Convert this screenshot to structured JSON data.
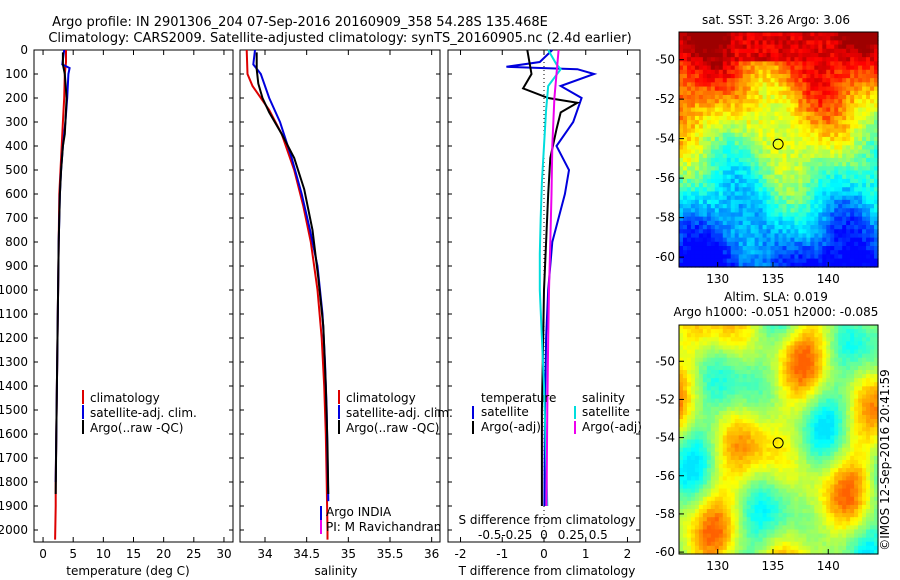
{
  "title": {
    "line1": "Argo profile: IN 2901306_204 07-Sep-2016 20160909_358 54.28S 135.468E",
    "line2": "Climatology: CARS2009. Satellite-adjusted climatology: synTS_20160905.nc (2.4d earlier)"
  },
  "colors": {
    "climatology": "#dd0000",
    "satellite": "#0000dd",
    "argo": "#000000",
    "sat_salinity": "#00dddd",
    "argo_salinity": "#ee00ee"
  },
  "chart_data": [
    {
      "type": "line",
      "xlabel": "temperature (deg C)",
      "ylim": [
        2050,
        0
      ],
      "xlim": [
        -1.5,
        31.5
      ],
      "x_ticks": [
        0,
        5,
        10,
        15,
        20,
        25,
        30
      ],
      "y_ticks": [
        0,
        100,
        200,
        300,
        400,
        500,
        600,
        700,
        800,
        900,
        1000,
        1100,
        1200,
        1300,
        1400,
        1500,
        1600,
        1700,
        1800,
        1900,
        2000
      ],
      "legend": [
        "climatology",
        "satellite-adj. clim.",
        "Argo(..raw -QC)"
      ],
      "series": [
        {
          "name": "climatology",
          "color": "#dd0000",
          "x": [
            3.8,
            3.8,
            3.6,
            3.5,
            3.3,
            3.1,
            2.9,
            2.7,
            2.6,
            2.5,
            2.4,
            2.3,
            2.2,
            2.1,
            2.1,
            2.0
          ],
          "y": [
            0,
            50,
            100,
            200,
            300,
            400,
            500,
            600,
            800,
            1000,
            1200,
            1400,
            1600,
            1800,
            1900,
            2040
          ]
        },
        {
          "name": "satellite-adj. clim.",
          "color": "#0000dd",
          "x": [
            3.5,
            3.2,
            4.4,
            4.2,
            4.0,
            3.7,
            3.3,
            3.0,
            2.8,
            2.6,
            2.5,
            2.4,
            2.3,
            2.2,
            2.1
          ],
          "y": [
            0,
            60,
            75,
            100,
            200,
            300,
            400,
            500,
            600,
            800,
            1000,
            1200,
            1400,
            1600,
            1800
          ]
        },
        {
          "name": "Argo(..raw -QC)",
          "color": "#000000",
          "x": [
            3.3,
            3.3,
            3.6,
            3.9,
            3.7,
            3.6,
            3.3,
            3.0,
            2.8,
            2.6,
            2.5,
            2.4,
            2.3,
            2.2,
            2.1
          ],
          "y": [
            10,
            60,
            100,
            200,
            300,
            350,
            400,
            500,
            600,
            800,
            1000,
            1200,
            1400,
            1600,
            1850
          ]
        }
      ]
    },
    {
      "type": "line",
      "xlabel": "salinity",
      "ylim": [
        2050,
        0
      ],
      "xlim": [
        33.7,
        36.1
      ],
      "x_ticks": [
        34,
        34.5,
        35,
        35.5,
        36
      ],
      "legend": [
        "climatology",
        "satellite-adj. clim.",
        "Argo(..raw -QC)"
      ],
      "annotation": [
        "Argo INDIA",
        "PI: M Ravichandran"
      ],
      "series": [
        {
          "name": "climatology",
          "color": "#dd0000",
          "x": [
            33.78,
            33.79,
            33.85,
            34.05,
            34.2,
            34.35,
            34.46,
            34.55,
            34.63,
            34.68,
            34.71,
            34.73,
            34.74,
            34.745,
            34.75,
            34.75
          ],
          "y": [
            0,
            100,
            150,
            250,
            350,
            500,
            650,
            800,
            1000,
            1200,
            1400,
            1600,
            1800,
            1900,
            2000,
            2040
          ]
        },
        {
          "name": "satellite-adj. clim.",
          "color": "#0000dd",
          "x": [
            33.88,
            33.86,
            33.95,
            34.05,
            34.18,
            34.32,
            34.44,
            34.54,
            34.63,
            34.69,
            34.72,
            34.74,
            34.75,
            34.76
          ],
          "y": [
            0,
            60,
            100,
            200,
            300,
            450,
            600,
            750,
            900,
            1100,
            1300,
            1500,
            1700,
            1880
          ]
        },
        {
          "name": "Argo(..raw -QC)",
          "color": "#000000",
          "x": [
            33.9,
            33.9,
            33.92,
            33.97,
            34.05,
            34.2,
            34.35,
            34.47,
            34.57,
            34.64,
            34.7,
            34.73,
            34.75,
            34.76
          ],
          "y": [
            10,
            80,
            140,
            200,
            260,
            350,
            450,
            580,
            750,
            950,
            1150,
            1400,
            1650,
            1850
          ]
        }
      ]
    },
    {
      "type": "line",
      "xlabel": "T difference from climatology",
      "top_axis_label": "S difference from climatology",
      "ylim": [
        2050,
        0
      ],
      "xlim": [
        -2.3,
        2.3
      ],
      "x_ticks": [
        -2,
        -1,
        0,
        1,
        2
      ],
      "s_ticks": [
        "-0.5",
        "-0.25",
        "0",
        "0.25",
        "0.5"
      ],
      "legend_headers": [
        "temperature",
        "salinity"
      ],
      "legend": [
        "satellite",
        "Argo(-adj)",
        "satellite",
        "Argo(-adj)"
      ],
      "series": [
        {
          "name": "satellite",
          "color": "#0000dd",
          "x": [
            0.2,
            -0.1,
            -0.9,
            0.8,
            1.2,
            0.4,
            0.9,
            0.7,
            0.3,
            0.6,
            0.5,
            0.2,
            0.1,
            0.05,
            0.03,
            0.02,
            0.01
          ],
          "y": [
            0,
            50,
            70,
            80,
            100,
            150,
            200,
            300,
            400,
            500,
            600,
            800,
            1000,
            1200,
            1400,
            1600,
            1900
          ]
        },
        {
          "name": "Argo(-adj)",
          "color": "#000000",
          "x": [
            -0.4,
            -0.3,
            -0.5,
            0.1,
            0.8,
            0.4,
            0.3,
            0.15,
            0.1,
            0.05,
            0.0,
            -0.02,
            -0.05,
            -0.05,
            -0.05
          ],
          "y": [
            0,
            100,
            160,
            200,
            220,
            260,
            330,
            450,
            600,
            800,
            1000,
            1200,
            1500,
            1700,
            1900
          ]
        },
        {
          "name": "satellite",
          "color": "#00dddd",
          "x": [
            0.1,
            0.3,
            0.4,
            0.1,
            0.05,
            0.0,
            -0.05,
            -0.08,
            -0.1,
            -0.1,
            -0.05,
            0.0,
            0.05,
            0.08
          ],
          "y": [
            0,
            60,
            80,
            150,
            250,
            400,
            550,
            700,
            850,
            1000,
            1200,
            1400,
            1700,
            1900
          ]
        },
        {
          "name": "Argo(-adj)",
          "color": "#ee00ee",
          "x": [
            0.35,
            0.3,
            0.25,
            0.2,
            0.18,
            0.15,
            0.12,
            0.1,
            0.08,
            0.07,
            0.06
          ],
          "y": [
            0,
            100,
            200,
            400,
            600,
            800,
            1000,
            1200,
            1500,
            1700,
            1900
          ]
        }
      ]
    },
    {
      "type": "heatmap",
      "title": "sat. SST: 3.26  Argo: 3.06",
      "xlim": [
        126.5,
        144.5
      ],
      "ylim": [
        -60.5,
        -48.6
      ],
      "x_ticks": [
        130,
        135,
        140
      ],
      "y_ticks": [
        -50,
        -52,
        -54,
        -56,
        -58,
        -60
      ],
      "marker": {
        "lon": 135.468,
        "lat": -54.28
      }
    },
    {
      "type": "heatmap",
      "title_line1": "Altim. SLA: 0.019",
      "title_line2": "Argo h1000: -0.051 h2000: -0.085",
      "xlim": [
        126.5,
        144.5
      ],
      "ylim": [
        -60.1,
        -48.1
      ],
      "x_ticks": [
        130,
        135,
        140
      ],
      "y_ticks": [
        -50,
        -52,
        -54,
        -56,
        -58,
        -60
      ],
      "marker": {
        "lon": 135.468,
        "lat": -54.28
      }
    }
  ],
  "credit": "©IMOS 12-Sep-2016 20:41:59"
}
